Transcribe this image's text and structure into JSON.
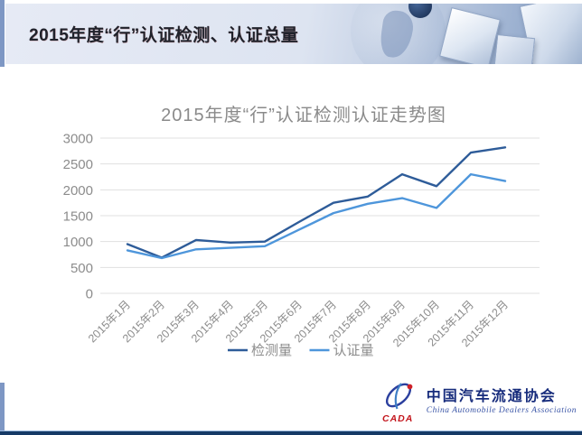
{
  "page": {
    "header": {
      "title": "2015年度“行”认证检测、认证总量"
    },
    "footer": {
      "logo": {
        "acronym": "CADA",
        "name_cn": "中国汽车流通协会",
        "name_en": "China Automobile Dealers Association"
      }
    }
  },
  "chart_data": {
    "type": "line",
    "title": "2015年度“行”认证检测认证走势图",
    "categories": [
      "2015年1月",
      "2015年2月",
      "2015年3月",
      "2015年4月",
      "2015年5月",
      "2015年6月",
      "2015年7月",
      "2015年8月",
      "2015年9月",
      "2015年10月",
      "2015年11月",
      "2015年12月"
    ],
    "series": [
      {
        "name": "检测量",
        "color": "#2e5c99",
        "values": [
          950,
          690,
          1030,
          980,
          1000,
          1380,
          1750,
          1870,
          2300,
          2070,
          2720,
          2820
        ]
      },
      {
        "name": "认证量",
        "color": "#4e96db",
        "values": [
          830,
          680,
          850,
          880,
          910,
          1230,
          1550,
          1730,
          1840,
          1650,
          2300,
          2170
        ]
      }
    ],
    "xlabel": "",
    "ylabel": "",
    "ylim": [
      0,
      3000
    ],
    "ytick_step": 500,
    "grid": true,
    "gridline_color": "#e0e0e0",
    "legend_position": "bottom",
    "text_color": "#8c8c8c"
  }
}
